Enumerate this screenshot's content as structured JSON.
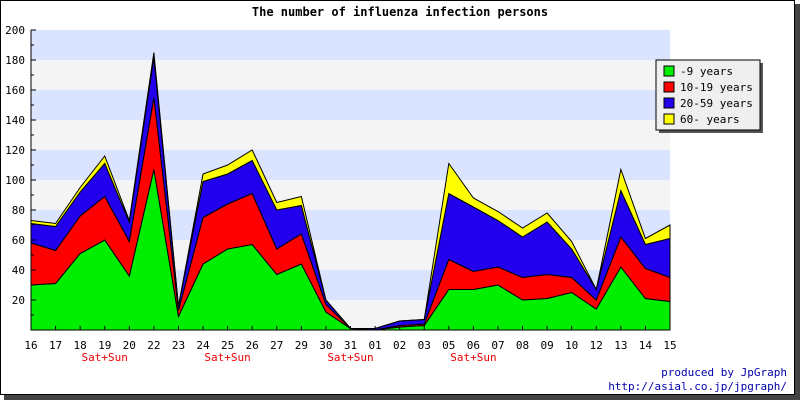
{
  "chart_data": {
    "type": "area",
    "stacked": true,
    "title": "The number of influenza infection persons",
    "xlabel": "",
    "ylabel": "",
    "ylim": [
      0,
      200
    ],
    "y_ticks": [
      20,
      40,
      60,
      80,
      100,
      120,
      140,
      160,
      180,
      200
    ],
    "grid": "horizontal bands",
    "legend_position": "top-right",
    "categories": [
      "16",
      "17",
      "18",
      "19",
      "20",
      "22",
      "23",
      "24",
      "25",
      "26",
      "27",
      "29",
      "30",
      "31",
      "01",
      "02",
      "03",
      "05",
      "06",
      "07",
      "08",
      "09",
      "10",
      "12",
      "13",
      "14",
      "15"
    ],
    "weekend_notes": [
      {
        "category": "19",
        "label": "Sat+Sun"
      },
      {
        "category": "25",
        "label": "Sat+Sun"
      },
      {
        "category": "31",
        "label": "Sat+Sun"
      },
      {
        "category": "06",
        "label": "Sat+Sun"
      }
    ],
    "series": [
      {
        "name": "-9 years",
        "color": "#00ee00",
        "values": [
          30,
          31,
          51,
          60,
          36,
          107,
          9,
          44,
          54,
          57,
          37,
          44,
          12,
          1,
          0,
          2,
          3,
          27,
          27,
          30,
          20,
          21,
          25,
          14,
          42,
          21,
          19
        ]
      },
      {
        "name": "10-19 years",
        "color": "#ff0000",
        "values": [
          28,
          22,
          25,
          29,
          23,
          48,
          4,
          31,
          30,
          34,
          17,
          20,
          5,
          0,
          0,
          1,
          1,
          20,
          12,
          12,
          15,
          16,
          10,
          6,
          20,
          20,
          16
        ]
      },
      {
        "name": "20-59 years",
        "color": "#2200ee",
        "values": [
          13,
          16,
          16,
          22,
          13,
          27,
          3,
          24,
          20,
          22,
          26,
          19,
          3,
          0,
          1,
          3,
          3,
          44,
          43,
          31,
          27,
          35,
          19,
          7,
          31,
          16,
          26
        ]
      },
      {
        "name": "60- years",
        "color": "#ffff00",
        "values": [
          2,
          2,
          3,
          5,
          1,
          3,
          0,
          5,
          6,
          7,
          5,
          6,
          0,
          0,
          0,
          0,
          0,
          20,
          6,
          6,
          6,
          6,
          5,
          0,
          14,
          4,
          9
        ]
      }
    ]
  },
  "credit": {
    "line1": "produced by JpGraph",
    "line2": "http://asial.co.jp/jpgraph/"
  }
}
